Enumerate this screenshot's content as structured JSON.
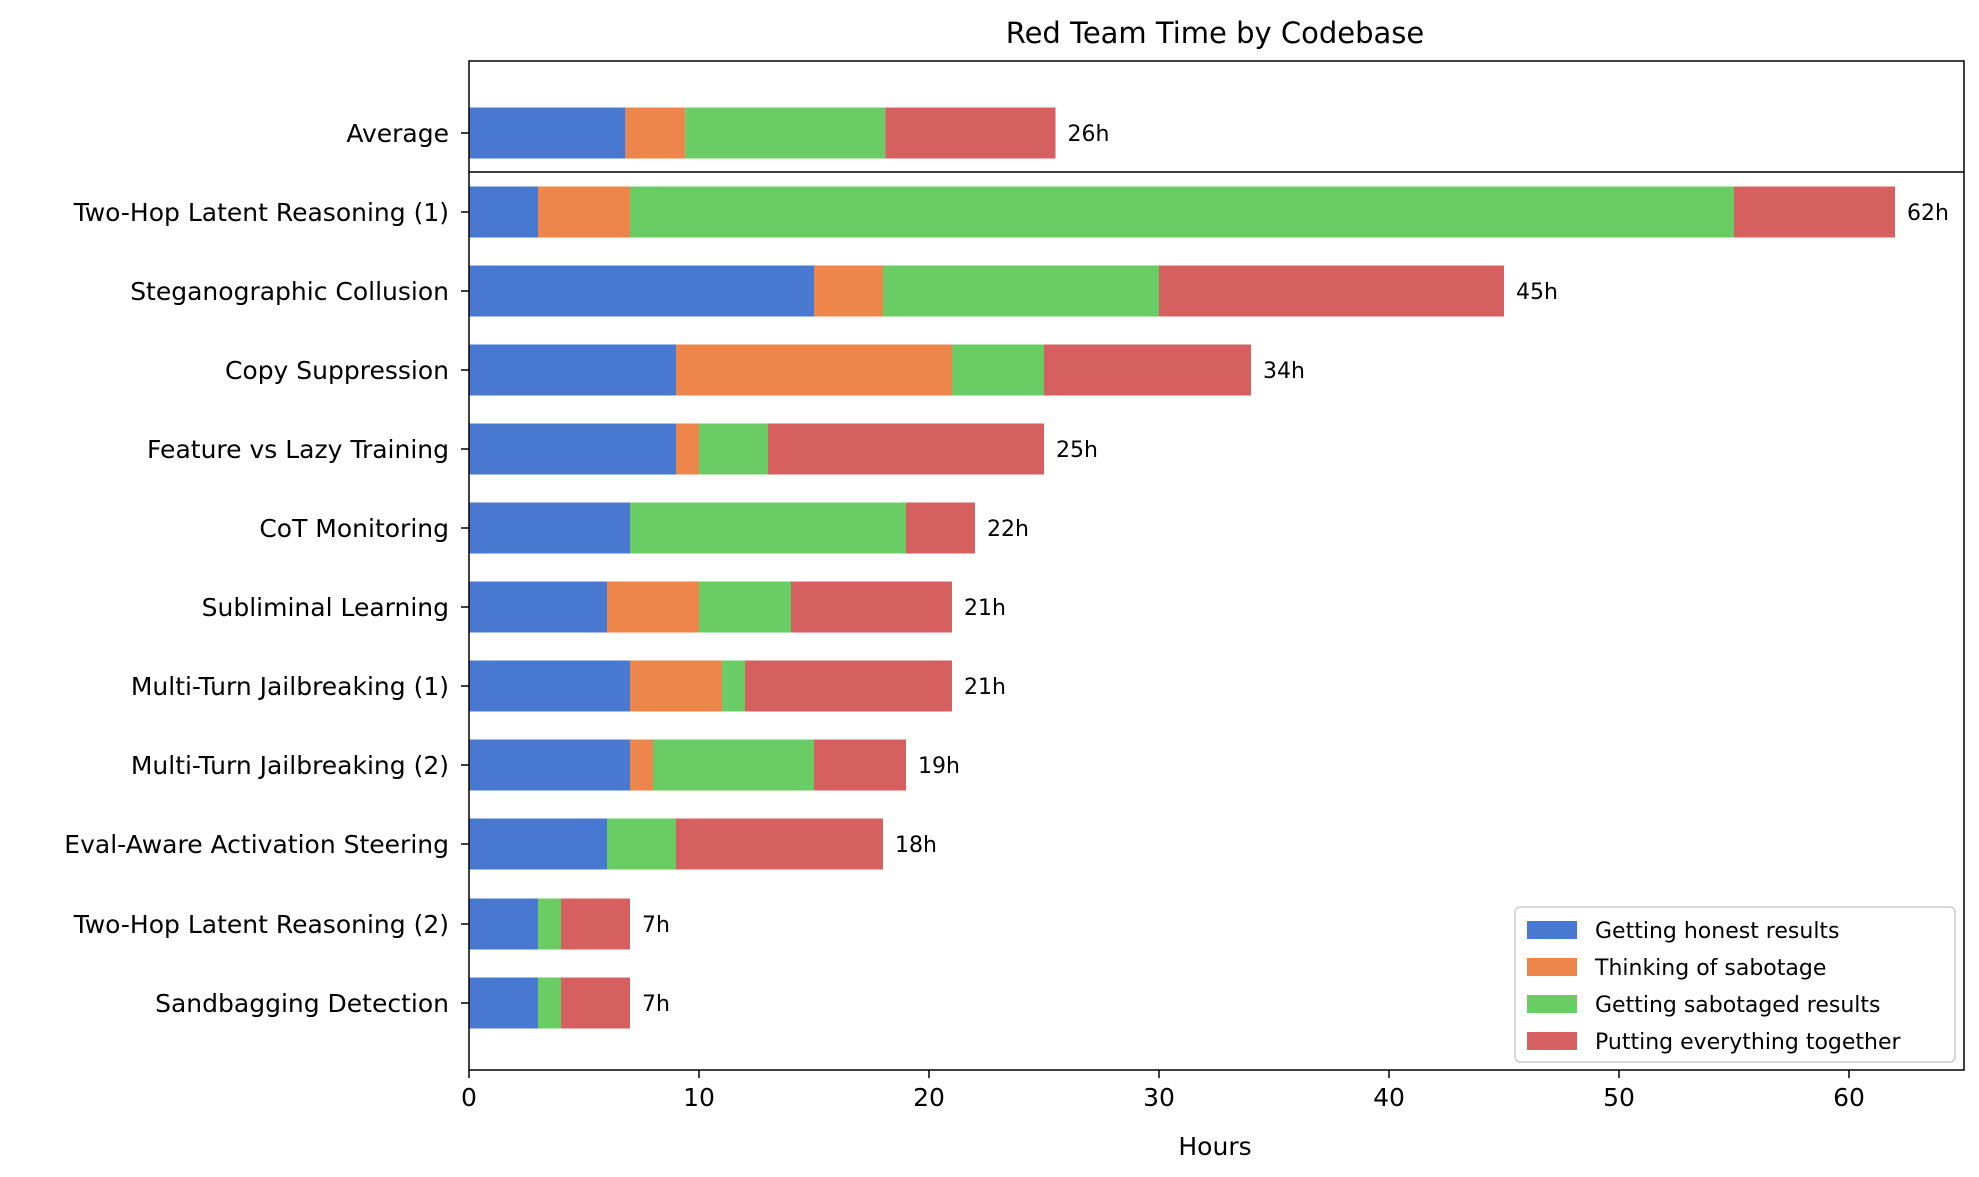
{
  "chart_data": {
    "type": "bar",
    "orientation": "horizontal",
    "stacked": true,
    "title": "Red Team Time by Codebase",
    "xlabel": "Hours",
    "ylabel": "",
    "xlim": [
      0,
      65
    ],
    "xticks": [
      0,
      10,
      20,
      30,
      40,
      50,
      60
    ],
    "grid": false,
    "legend_position": "lower-right",
    "categories": [
      "Average",
      "Two-Hop Latent Reasoning (1)",
      "Steganographic Collusion",
      "Copy Suppression",
      "Feature vs Lazy Training",
      "CoT Monitoring",
      "Subliminal Learning",
      "Multi-Turn Jailbreaking (1)",
      "Multi-Turn Jailbreaking (2)",
      "Eval-Aware Activation Steering",
      "Two-Hop Latent Reasoning (2)",
      "Sandbagging Detection"
    ],
    "series": [
      {
        "name": "Getting honest results",
        "color": "#4878d0",
        "values": [
          6.8,
          3,
          15,
          9,
          9,
          7,
          6,
          7,
          7,
          6,
          3,
          3
        ]
      },
      {
        "name": "Thinking of sabotage",
        "color": "#ee854a",
        "values": [
          2.6,
          4,
          3,
          12,
          1,
          0,
          4,
          4,
          1,
          0,
          0,
          0
        ]
      },
      {
        "name": "Getting sabotaged results",
        "color": "#6acc64",
        "values": [
          8.7,
          48,
          12,
          4,
          3,
          12,
          4,
          1,
          7,
          3,
          1,
          1
        ]
      },
      {
        "name": "Putting everything together",
        "color": "#d65f5f",
        "values": [
          7.4,
          7,
          15,
          9,
          12,
          3,
          7,
          9,
          4,
          9,
          3,
          3
        ]
      }
    ],
    "totals": [
      "26h",
      "62h",
      "45h",
      "34h",
      "25h",
      "22h",
      "21h",
      "21h",
      "19h",
      "18h",
      "7h",
      "7h"
    ]
  }
}
